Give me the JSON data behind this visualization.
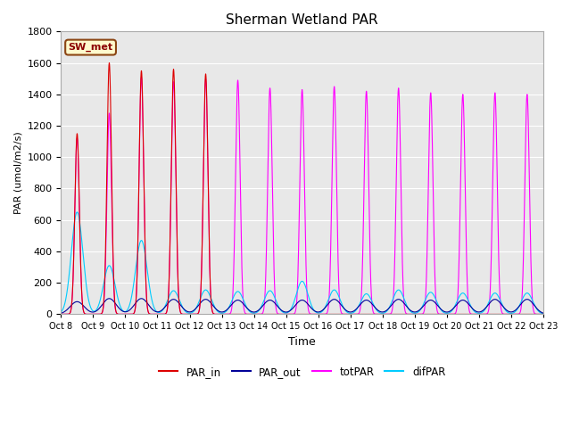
{
  "title": "Sherman Wetland PAR",
  "ylabel": "PAR (umol/m2/s)",
  "xlabel": "Time",
  "annotation": "SW_met",
  "ylim": [
    0,
    1800
  ],
  "plot_bg_color": "#e8e8e8",
  "colors": {
    "PAR_in": "#dd0000",
    "PAR_out": "#000099",
    "totPAR": "#ff00ff",
    "difPAR": "#00ccff"
  },
  "x_tick_labels": [
    "Oct 8",
    "Oct 9",
    "Oct 10",
    "Oct 11",
    "Oct 12",
    "Oct 13",
    "Oct 14",
    "Oct 15",
    "Oct 16",
    "Oct 17",
    "Oct 18",
    "Oct 19",
    "Oct 20",
    "Oct 21",
    "Oct 22",
    "Oct 23"
  ],
  "n_days": 15,
  "peaks_PAR_in": [
    1150,
    1600,
    1550,
    1560,
    1530,
    0,
    0,
    0,
    0,
    0,
    0,
    0,
    0,
    0,
    0
  ],
  "peaks_totPAR": [
    1120,
    1280,
    1510,
    1480,
    1500,
    1490,
    1440,
    1430,
    1450,
    1420,
    1440,
    1410,
    1400,
    1410,
    1400
  ],
  "peaks_PAR_out": [
    80,
    100,
    100,
    95,
    95,
    90,
    90,
    90,
    95,
    90,
    95,
    90,
    90,
    95,
    95
  ],
  "peaks_difPAR": [
    650,
    310,
    470,
    150,
    155,
    145,
    150,
    210,
    155,
    130,
    155,
    140,
    135,
    135,
    135
  ]
}
